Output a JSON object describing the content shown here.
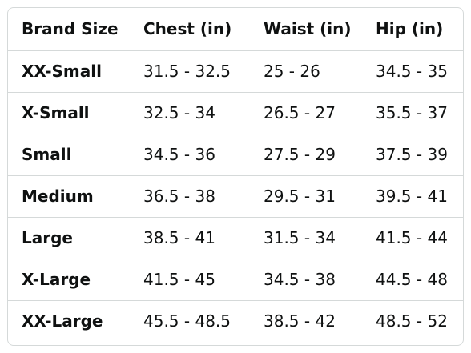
{
  "table": {
    "headers": [
      "Brand Size",
      "Chest (in)",
      "Waist (in)",
      "Hip (in)"
    ],
    "rows": [
      [
        "XX-Small",
        "31.5 - 32.5",
        "25 - 26",
        "34.5 - 35"
      ],
      [
        "X-Small",
        "32.5 - 34",
        "26.5 - 27",
        "35.5 - 37"
      ],
      [
        "Small",
        "34.5 - 36",
        "27.5 - 29",
        "37.5 - 39"
      ],
      [
        "Medium",
        "36.5 - 38",
        "29.5 - 31",
        "39.5 - 41"
      ],
      [
        "Large",
        "38.5 - 41",
        "31.5 - 34",
        "41.5 - 44"
      ],
      [
        "X-Large",
        "41.5 - 45",
        "34.5 - 38",
        "44.5 - 48"
      ],
      [
        "XX-Large",
        "45.5 - 48.5",
        "38.5 - 42",
        "48.5 - 52"
      ]
    ]
  }
}
